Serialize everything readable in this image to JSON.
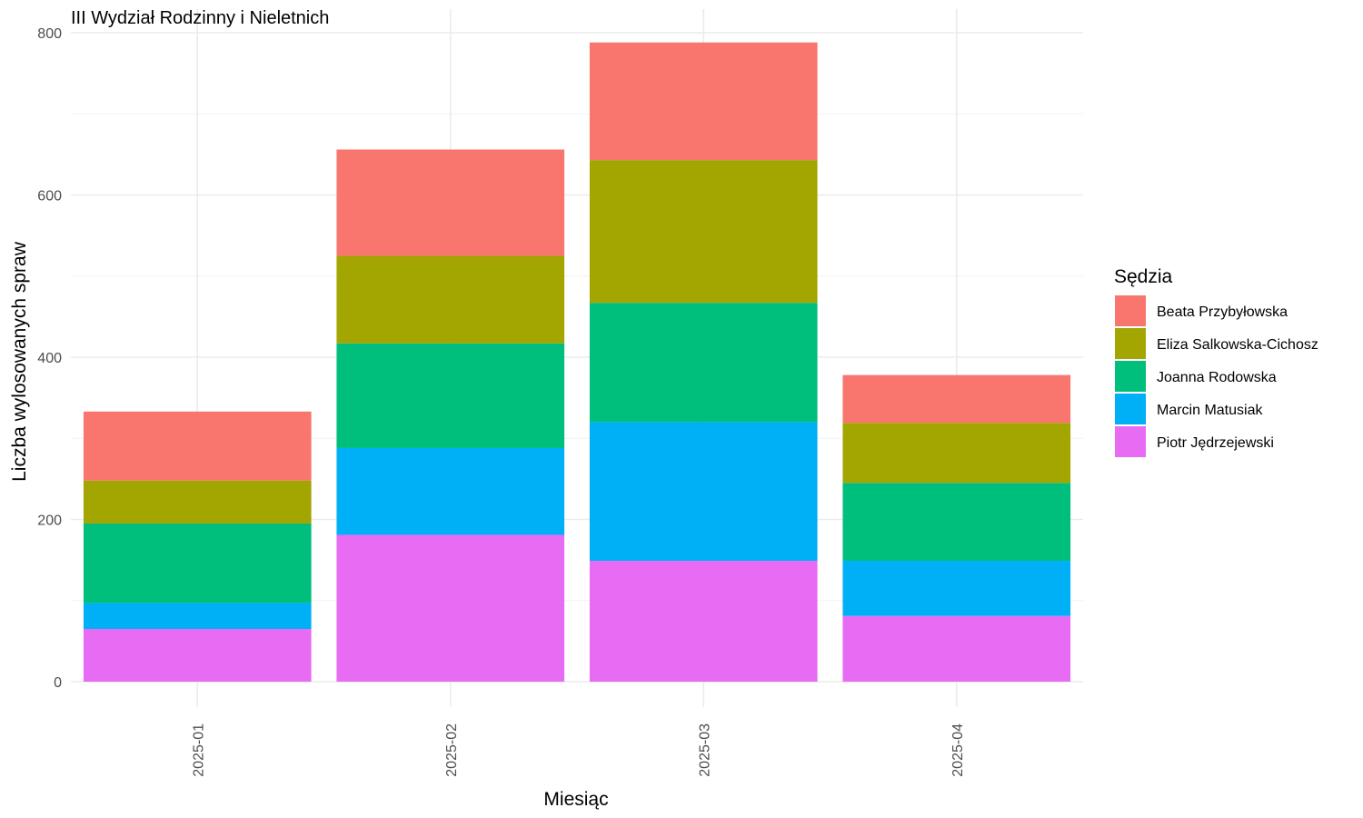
{
  "chart_data": {
    "type": "bar",
    "stacked": true,
    "title": "III Wydział Rodzinny i Nieletnich",
    "xlabel": "Miesiąc",
    "ylabel": "Liczba wylosowanych spraw",
    "ylim": [
      0,
      800
    ],
    "yticks": [
      0,
      200,
      400,
      600,
      800
    ],
    "grid": true,
    "legend_title": "Sędzia",
    "legend_position": "right",
    "categories": [
      "2025-01",
      "2025-02",
      "2025-03",
      "2025-04"
    ],
    "series": [
      {
        "name": "Piotr Jędrzejewski",
        "color": "#E76BF3",
        "values": [
          65,
          181,
          149,
          81
        ]
      },
      {
        "name": "Marcin Matusiak",
        "color": "#00B0F6",
        "values": [
          32,
          107,
          171,
          68
        ]
      },
      {
        "name": "Joanna Rodowska",
        "color": "#00BF7D",
        "values": [
          98,
          129,
          147,
          96
        ]
      },
      {
        "name": "Eliza Salkowska-Cichosz",
        "color": "#A3A500",
        "values": [
          53,
          108,
          176,
          74
        ]
      },
      {
        "name": "Beata Przybyłowska",
        "color": "#F8766D",
        "values": [
          85,
          131,
          145,
          59
        ]
      }
    ],
    "legend_order": [
      "Beata Przybyłowska",
      "Eliza Salkowska-Cichosz",
      "Joanna Rodowska",
      "Marcin Matusiak",
      "Piotr Jędrzejewski"
    ]
  }
}
